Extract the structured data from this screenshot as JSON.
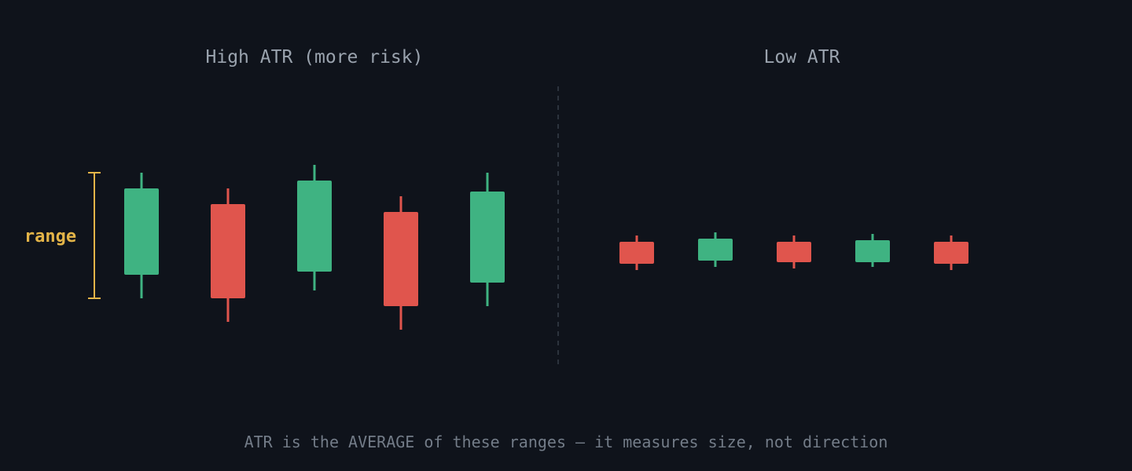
{
  "colors": {
    "background": "#0f131b",
    "bullish": "#3fb382",
    "bearish": "#e0554d",
    "range_marker": "#e3b448",
    "divider": "#2c333d",
    "title_text": "#9aa3ae",
    "footer_text": "#737c88"
  },
  "high_panel": {
    "title": "High ATR (more risk)"
  },
  "low_panel": {
    "title": "Low ATR"
  },
  "range_label": "range",
  "footer": "ATR is the AVERAGE of these ranges — it measures size, not direction"
}
